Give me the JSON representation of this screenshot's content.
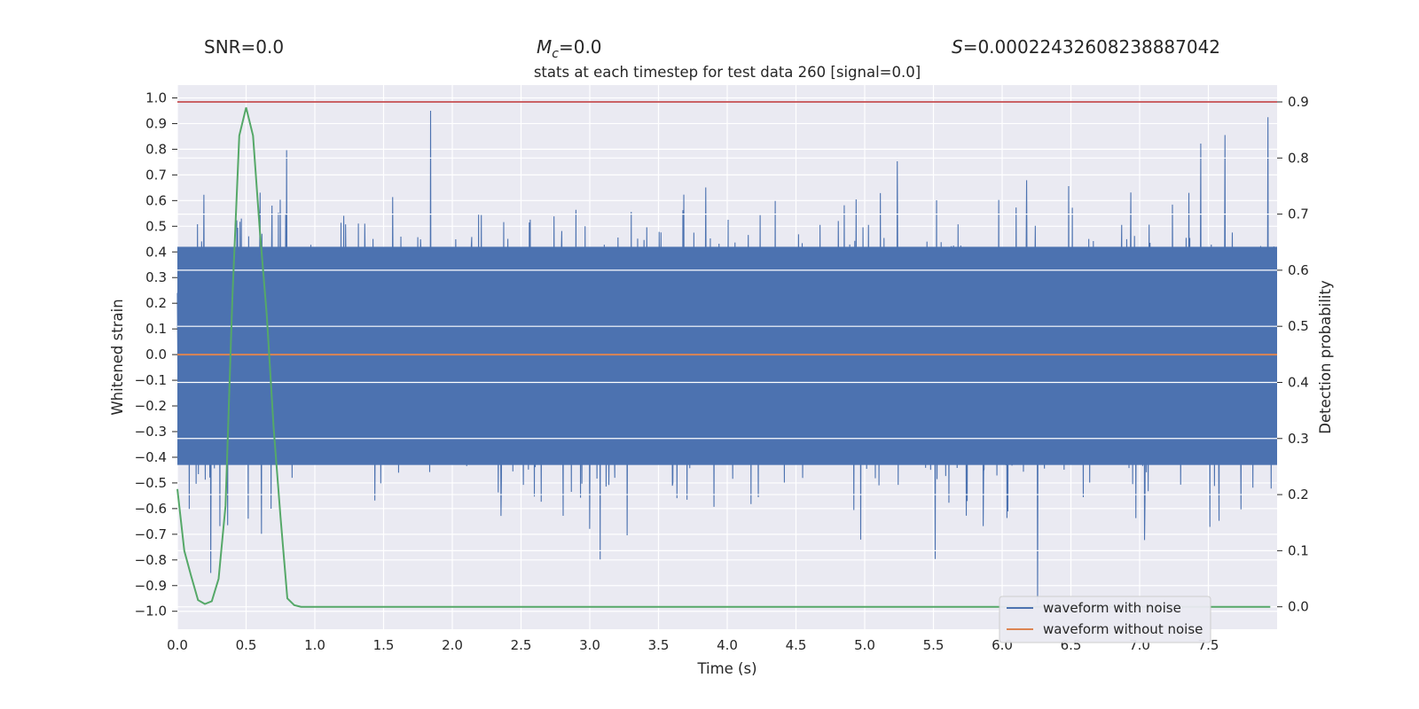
{
  "header": {
    "snr_text": "SNR=0.0",
    "mc_symbol": "M",
    "mc_subscript": "c",
    "mc_value": "=0.0",
    "s_symbol": "S",
    "s_value": "=0.00022432608238887042"
  },
  "chart_data": {
    "type": "line",
    "title": "stats at each timestep for test data 260 [signal=0.0]",
    "xlabel": "Time (s)",
    "ylabel_left": "Whitened strain",
    "ylabel_right": "Detection probability",
    "xlim": [
      0.0,
      8.0
    ],
    "ylim_left": [
      -1.07,
      1.05
    ],
    "ylim_right": [
      -0.04,
      0.93
    ],
    "x_ticks": [
      "0.0",
      "0.5",
      "1.0",
      "1.5",
      "2.0",
      "2.5",
      "3.0",
      "3.5",
      "4.0",
      "4.5",
      "5.0",
      "5.5",
      "6.0",
      "6.5",
      "7.0",
      "7.5"
    ],
    "y_ticks_left": [
      "1.0",
      "0.9",
      "0.8",
      "0.7",
      "0.6",
      "0.5",
      "0.4",
      "0.3",
      "0.2",
      "0.1",
      "0.0",
      "−0.1",
      "−0.2",
      "−0.3",
      "−0.4",
      "−0.5",
      "−0.6",
      "−0.7",
      "−0.8",
      "−0.9",
      "−1.0"
    ],
    "y_ticks_right": [
      "0.9",
      "0.8",
      "0.7",
      "0.6",
      "0.5",
      "0.4",
      "0.3",
      "0.2",
      "0.1",
      "0.0"
    ],
    "threshold": {
      "value": 0.9,
      "axis": "right",
      "color": "#c44e52"
    },
    "series": [
      {
        "name": "waveform with noise",
        "axis": "left",
        "color": "#4c72b0",
        "description": "dense noisy whitened strain, approx range -0.97 to 0.95",
        "summary": {
          "min": -0.97,
          "max": 0.95,
          "dense_band": [
            -0.43,
            0.42
          ]
        }
      },
      {
        "name": "waveform without noise",
        "axis": "left",
        "color": "#dd8452",
        "x": [
          0.0,
          8.0
        ],
        "y": [
          0.0,
          0.0
        ]
      },
      {
        "name": "detection probability",
        "axis": "right",
        "color": "#55a868",
        "x": [
          0.0,
          0.05,
          0.1,
          0.15,
          0.2,
          0.25,
          0.3,
          0.35,
          0.4,
          0.45,
          0.5,
          0.55,
          0.6,
          0.65,
          0.7,
          0.75,
          0.8,
          0.85,
          0.9,
          1.0,
          2.0,
          3.0,
          4.0,
          5.0,
          6.0,
          7.0,
          7.95
        ],
        "y": [
          0.21,
          0.1,
          0.055,
          0.012,
          0.005,
          0.01,
          0.05,
          0.18,
          0.55,
          0.84,
          0.89,
          0.84,
          0.67,
          0.52,
          0.32,
          0.16,
          0.015,
          0.003,
          0.0,
          0.0,
          0.0,
          0.0,
          0.0,
          0.0,
          0.0,
          0.0,
          0.0
        ]
      }
    ],
    "legend": {
      "position": "lower-right",
      "entries": [
        "waveform with noise",
        "waveform without noise"
      ]
    },
    "grid": true
  }
}
